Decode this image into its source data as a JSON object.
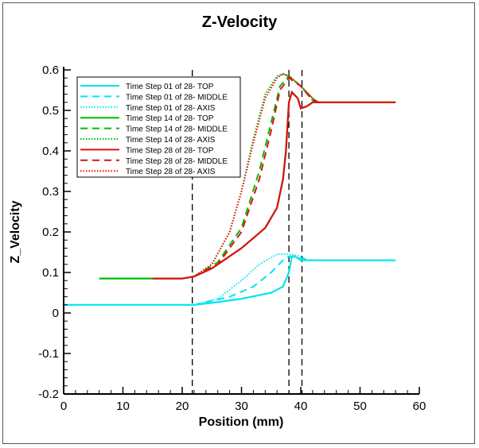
{
  "chart_data": {
    "type": "line",
    "title": "Z-Velocity",
    "xlabel": "Position (mm)",
    "ylabel": "Z_Velocity",
    "xlim": [
      0,
      60
    ],
    "ylim": [
      -0.2,
      0.6
    ],
    "xticks": [
      0,
      10,
      20,
      30,
      40,
      50,
      60
    ],
    "yticks": [
      -0.2,
      -0.1,
      0,
      0.1,
      0.2,
      0.3,
      0.4,
      0.5,
      0.6
    ],
    "grid": false,
    "legend_position": "top-left",
    "vertical_reference_lines_x": [
      21.7,
      38.0,
      40.2
    ],
    "series": [
      {
        "name": "Time Step 01 of 28- TOP",
        "color": "#00e5ee",
        "style": "solid",
        "x": [
          0,
          22,
          25,
          30,
          35,
          37,
          38,
          38.5,
          39,
          40,
          42,
          56
        ],
        "y": [
          0.02,
          0.02,
          0.025,
          0.035,
          0.05,
          0.065,
          0.1,
          0.14,
          0.14,
          0.13,
          0.13,
          0.13
        ]
      },
      {
        "name": "Time Step 01 of 28- MIDDLE",
        "color": "#00e5ee",
        "style": "dashed",
        "x": [
          22,
          28,
          32,
          35,
          37,
          38,
          40,
          42
        ],
        "y": [
          0.02,
          0.04,
          0.065,
          0.1,
          0.13,
          0.14,
          0.135,
          0.13
        ]
      },
      {
        "name": "Time Step 01 of 28- AXIS",
        "color": "#00e5ee",
        "style": "dotted",
        "x": [
          22,
          26,
          30,
          33,
          36,
          38,
          40,
          41
        ],
        "y": [
          0.02,
          0.035,
          0.08,
          0.12,
          0.145,
          0.145,
          0.14,
          0.13
        ]
      },
      {
        "name": "Time Step 14 of 28- TOP",
        "color": "#00bb00",
        "style": "solid",
        "x": [
          6,
          15,
          20,
          22,
          25,
          30,
          34,
          36,
          37,
          37.5,
          38,
          38.5,
          39.5,
          40,
          41,
          42,
          56
        ],
        "y": [
          0.085,
          0.085,
          0.085,
          0.09,
          0.11,
          0.16,
          0.21,
          0.26,
          0.33,
          0.4,
          0.52,
          0.545,
          0.53,
          0.505,
          0.51,
          0.52,
          0.52
        ]
      },
      {
        "name": "Time Step 14 of 28- MIDDLE",
        "color": "#00bb00",
        "style": "dashed",
        "x": [
          22,
          26,
          30,
          33,
          35,
          36.5,
          38,
          40,
          42,
          43
        ],
        "y": [
          0.09,
          0.125,
          0.21,
          0.35,
          0.47,
          0.56,
          0.585,
          0.56,
          0.525,
          0.52
        ]
      },
      {
        "name": "Time Step 14 of 28- AXIS",
        "color": "#00bb00",
        "style": "dotted",
        "x": [
          22,
          25,
          28,
          30,
          32,
          34,
          36,
          37,
          38,
          40,
          42,
          43
        ],
        "y": [
          0.09,
          0.12,
          0.2,
          0.3,
          0.43,
          0.54,
          0.585,
          0.59,
          0.585,
          0.56,
          0.53,
          0.52
        ]
      },
      {
        "name": "Time Step 28 of 28- TOP",
        "color": "#dd1111",
        "style": "solid",
        "x": [
          15,
          20,
          22,
          25,
          30,
          34,
          36,
          37,
          37.5,
          38,
          38.5,
          39.5,
          40,
          41,
          42,
          56
        ],
        "y": [
          0.085,
          0.085,
          0.09,
          0.11,
          0.16,
          0.21,
          0.26,
          0.33,
          0.4,
          0.52,
          0.545,
          0.53,
          0.505,
          0.51,
          0.52,
          0.52
        ]
      },
      {
        "name": "Time Step 28 of 28- MIDDLE",
        "color": "#dd1111",
        "style": "dashed",
        "x": [
          22,
          26,
          30,
          33,
          35,
          36.5,
          38,
          40,
          42,
          43
        ],
        "y": [
          0.09,
          0.12,
          0.2,
          0.33,
          0.45,
          0.55,
          0.58,
          0.56,
          0.525,
          0.52
        ]
      },
      {
        "name": "Time Step 28 of 28- AXIS",
        "color": "#dd1111",
        "style": "dotted",
        "x": [
          22,
          25,
          28,
          30,
          32,
          34,
          36,
          37,
          38,
          40,
          42,
          43
        ],
        "y": [
          0.09,
          0.12,
          0.2,
          0.3,
          0.42,
          0.53,
          0.58,
          0.59,
          0.585,
          0.56,
          0.53,
          0.52
        ]
      }
    ]
  }
}
